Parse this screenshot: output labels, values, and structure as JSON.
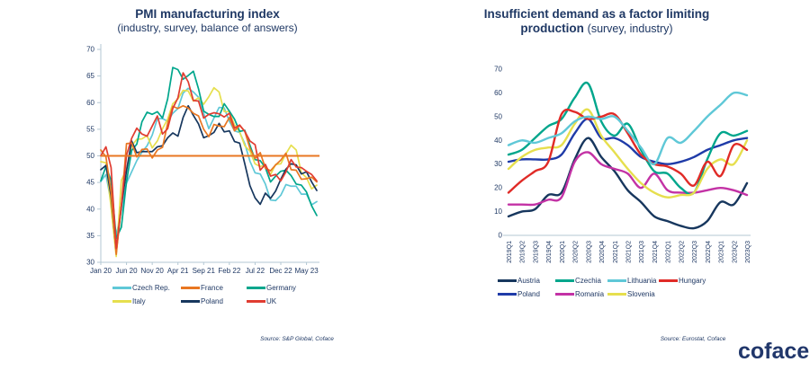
{
  "theme": {
    "text_navy": "#1f3864",
    "axis_color": "#b3c7d3",
    "background": "#ffffff"
  },
  "logo": {
    "text": "coface"
  },
  "chart_data": [
    {
      "type": "line",
      "smooth": false,
      "title": "PMI manufacturing index",
      "subtitle": "(industry, survey, balance of answers)",
      "source": "Source: S&P Global, Coface",
      "ylim": [
        30,
        70
      ],
      "y_ticks": [
        30,
        35,
        40,
        45,
        50,
        55,
        60,
        65,
        70
      ],
      "n_points": 43,
      "x_tick_indices": [
        0,
        5,
        10,
        15,
        20,
        25,
        30,
        35,
        40
      ],
      "x_tick_labels": [
        "Jan 20",
        "Jun 20",
        "Nov 20",
        "Apr 21",
        "Sep 21",
        "Feb 22",
        "Jul 22",
        "Dec 22",
        "May 23"
      ],
      "reference_line": 50,
      "reference_color": "#e87722",
      "line_width": 1.7,
      "axes": {
        "y_line": true,
        "x_tick_marks": true,
        "rotate_x_labels": false
      },
      "legend_position": "bottom",
      "draw_order": [
        0,
        3,
        2,
        4,
        1,
        5
      ],
      "series": [
        {
          "name": "Czech Rep.",
          "color": "#5fc8d7",
          "values": [
            45.2,
            46.5,
            41.3,
            35.1,
            39.6,
            44.9,
            47.0,
            49.1,
            50.7,
            51.9,
            53.9,
            57.0,
            57.0,
            56.5,
            58.0,
            58.9,
            61.8,
            62.7,
            62.0,
            61.0,
            58.0,
            55.1,
            57.1,
            59.1,
            59.0,
            56.5,
            54.7,
            54.4,
            52.3,
            49.0,
            46.8,
            46.6,
            44.7,
            41.7,
            41.6,
            42.6,
            44.6,
            44.3,
            44.3,
            42.8,
            42.8,
            40.8,
            41.4
          ]
        },
        {
          "name": "France",
          "color": "#e87722",
          "values": [
            51.1,
            49.8,
            43.2,
            31.5,
            40.6,
            52.3,
            52.4,
            49.8,
            51.2,
            51.3,
            49.6,
            51.1,
            51.6,
            56.1,
            59.3,
            58.9,
            59.4,
            59.0,
            58.0,
            57.5,
            55.0,
            53.6,
            55.9,
            55.6,
            55.5,
            57.2,
            54.7,
            55.7,
            54.6,
            51.4,
            49.5,
            50.6,
            47.7,
            47.2,
            48.3,
            49.2,
            50.5,
            47.4,
            47.3,
            45.6,
            45.7,
            46.0,
            45.1
          ]
        },
        {
          "name": "Germany",
          "color": "#00a68c",
          "values": [
            45.3,
            48.0,
            45.4,
            34.5,
            36.6,
            45.2,
            51.0,
            52.2,
            56.4,
            58.2,
            57.8,
            58.3,
            57.1,
            60.7,
            66.6,
            66.2,
            64.4,
            65.1,
            65.9,
            62.6,
            58.4,
            57.8,
            57.4,
            57.4,
            59.8,
            58.4,
            56.9,
            54.6,
            54.8,
            52.0,
            49.3,
            49.1,
            47.8,
            45.1,
            46.2,
            47.1,
            47.3,
            46.3,
            44.7,
            44.5,
            43.2,
            40.6,
            38.8
          ]
        },
        {
          "name": "Italy",
          "color": "#e6df4e",
          "values": [
            48.9,
            48.7,
            40.3,
            31.1,
            45.4,
            47.5,
            51.9,
            53.1,
            53.2,
            53.8,
            51.5,
            52.8,
            55.1,
            56.9,
            59.8,
            60.7,
            62.3,
            62.2,
            60.3,
            60.9,
            59.7,
            61.1,
            62.8,
            62.0,
            58.3,
            58.3,
            55.8,
            54.5,
            51.9,
            50.9,
            48.5,
            48.0,
            48.3,
            46.5,
            48.4,
            48.5,
            50.4,
            52.0,
            51.1,
            46.8,
            45.9,
            43.8,
            44.5
          ]
        },
        {
          "name": "Poland",
          "color": "#17375e",
          "values": [
            47.4,
            48.2,
            42.4,
            31.9,
            40.6,
            47.2,
            52.8,
            50.6,
            50.8,
            50.8,
            50.8,
            51.7,
            51.9,
            53.4,
            54.3,
            53.7,
            57.2,
            59.4,
            57.6,
            56.0,
            53.4,
            53.8,
            54.4,
            56.1,
            54.5,
            54.7,
            52.7,
            52.4,
            48.5,
            44.4,
            42.1,
            40.9,
            43.0,
            42.0,
            43.4,
            45.6,
            47.5,
            48.5,
            48.3,
            46.6,
            47.0,
            45.1,
            43.5
          ]
        },
        {
          "name": "UK",
          "color": "#e03c31",
          "values": [
            50.0,
            51.7,
            47.8,
            32.6,
            40.7,
            50.1,
            53.3,
            55.2,
            54.1,
            53.7,
            55.6,
            57.5,
            54.1,
            55.1,
            58.9,
            60.9,
            65.6,
            63.9,
            60.4,
            60.3,
            57.1,
            57.8,
            58.1,
            57.9,
            57.3,
            58.0,
            55.2,
            55.8,
            54.6,
            52.8,
            52.1,
            47.3,
            48.4,
            46.2,
            46.5,
            45.3,
            47.0,
            49.3,
            47.9,
            47.8,
            47.1,
            46.5,
            45.3
          ]
        }
      ]
    },
    {
      "type": "line",
      "smooth": true,
      "title_line1": "Insufficient demand as a factor limiting",
      "title_line2_bold": "production",
      "title_line2_regular": "(survey, industry)",
      "source": "Source: Eurostat, Coface",
      "ylim": [
        0,
        70
      ],
      "y_ticks": [
        0,
        10,
        20,
        30,
        40,
        50,
        60,
        70
      ],
      "categories": [
        "2019Q1",
        "2019Q2",
        "2019Q3",
        "2019Q4",
        "2020Q1",
        "2020Q2",
        "2020Q3",
        "2020Q4",
        "2021Q1",
        "2021Q2",
        "2021Q3",
        "2021Q4",
        "2022Q1",
        "2022Q2",
        "2022Q3",
        "2022Q4",
        "2023Q1",
        "2023Q2",
        "2023Q3"
      ],
      "line_width": 2.4,
      "axes": {
        "y_line": false,
        "x_tick_marks": false,
        "rotate_x_labels": true
      },
      "legend_position": "bottom",
      "draw_order": [
        0,
        4,
        5,
        1,
        6,
        3,
        2
      ],
      "series": [
        {
          "name": "Austria",
          "color": "#17375e",
          "values": [
            8,
            10,
            11,
            17,
            18,
            32,
            41,
            33,
            27,
            19,
            14,
            8,
            6,
            4,
            3,
            6,
            14,
            13,
            22
          ]
        },
        {
          "name": "Czechia",
          "color": "#00a68c",
          "values": [
            34,
            36,
            41,
            46,
            49,
            58,
            64,
            48,
            42,
            47,
            36,
            27,
            26,
            20,
            18,
            32,
            43,
            42,
            44
          ]
        },
        {
          "name": "Lithuania",
          "color": "#5fc8d7",
          "values": [
            38,
            40,
            39,
            41,
            43,
            48,
            50,
            49,
            50,
            44,
            37,
            30,
            41,
            39,
            44,
            50,
            55,
            60,
            59
          ]
        },
        {
          "name": "Hungary",
          "color": "#e02b27",
          "values": [
            18,
            23,
            27,
            31,
            51,
            52,
            49,
            50,
            51,
            43,
            34,
            30,
            29,
            26,
            21,
            31,
            25,
            38,
            36
          ]
        },
        {
          "name": "Poland",
          "color": "#1f3ba8",
          "values": [
            31,
            32,
            32,
            32,
            34,
            43,
            49,
            41,
            41,
            38,
            33,
            31,
            30,
            31,
            33,
            36,
            38,
            40,
            41
          ]
        },
        {
          "name": "Romania",
          "color": "#c332a5",
          "values": [
            13,
            13,
            13,
            15,
            16,
            31,
            35,
            30,
            28,
            26,
            20,
            26,
            19,
            18,
            18,
            19,
            20,
            19,
            17
          ]
        },
        {
          "name": "Slovenia",
          "color": "#e6df4e",
          "values": [
            28,
            33,
            36,
            37,
            38,
            47,
            53,
            42,
            35,
            28,
            22,
            18,
            16,
            17,
            18,
            28,
            32,
            30,
            40
          ]
        }
      ]
    }
  ]
}
